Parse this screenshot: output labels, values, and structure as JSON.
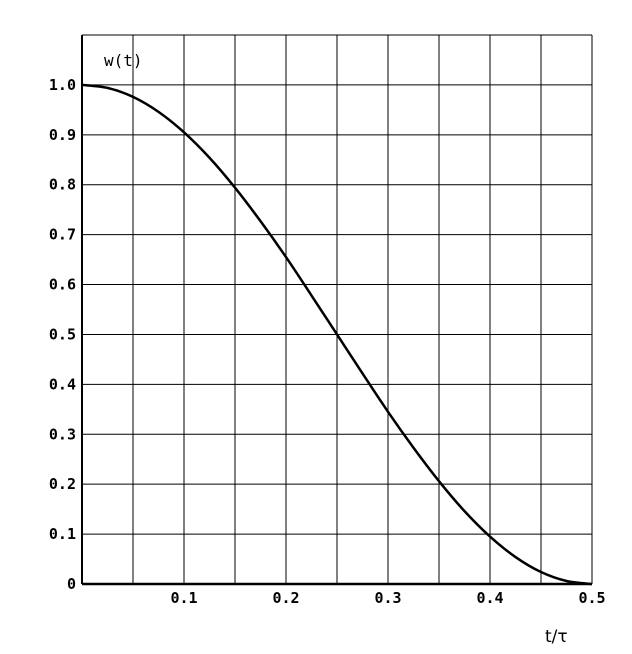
{
  "chart_data": {
    "type": "line",
    "title": "",
    "xlabel": "t/τ",
    "ylabel": "w(t)",
    "xlim": [
      0,
      0.5
    ],
    "ylim": [
      0,
      1.1
    ],
    "grid": true,
    "x_gridlines": [
      0.05,
      0.1,
      0.15,
      0.2,
      0.25,
      0.3,
      0.35,
      0.4,
      0.45,
      0.5
    ],
    "y_gridlines": [
      0.1,
      0.2,
      0.3,
      0.4,
      0.5,
      0.6,
      0.7,
      0.8,
      0.9,
      1.0,
      1.1
    ],
    "x_ticks": [
      {
        "value": 0.1,
        "label": "0.1"
      },
      {
        "value": 0.2,
        "label": "0.2"
      },
      {
        "value": 0.3,
        "label": "0.3"
      },
      {
        "value": 0.4,
        "label": "0.4"
      },
      {
        "value": 0.5,
        "label": "0.5"
      }
    ],
    "y_ticks": [
      {
        "value": 0,
        "label": "0"
      },
      {
        "value": 0.1,
        "label": "0.1"
      },
      {
        "value": 0.2,
        "label": "0.2"
      },
      {
        "value": 0.3,
        "label": "0.3"
      },
      {
        "value": 0.4,
        "label": "0.4"
      },
      {
        "value": 0.5,
        "label": "0.5"
      },
      {
        "value": 0.6,
        "label": "0.6"
      },
      {
        "value": 0.7,
        "label": "0.7"
      },
      {
        "value": 0.8,
        "label": "0.8"
      },
      {
        "value": 0.9,
        "label": "0.9"
      },
      {
        "value": 1.0,
        "label": "1.0"
      }
    ],
    "series": [
      {
        "x": [
          0,
          0.025,
          0.05,
          0.075,
          0.1,
          0.125,
          0.15,
          0.175,
          0.2,
          0.225,
          0.25,
          0.275,
          0.3,
          0.325,
          0.35,
          0.375,
          0.4,
          0.425,
          0.45,
          0.475,
          0.5
        ],
        "values": [
          1.0,
          0.994,
          0.976,
          0.946,
          0.905,
          0.854,
          0.794,
          0.727,
          0.655,
          0.578,
          0.5,
          0.422,
          0.345,
          0.273,
          0.206,
          0.146,
          0.095,
          0.054,
          0.024,
          0.006,
          0.0
        ]
      }
    ]
  }
}
